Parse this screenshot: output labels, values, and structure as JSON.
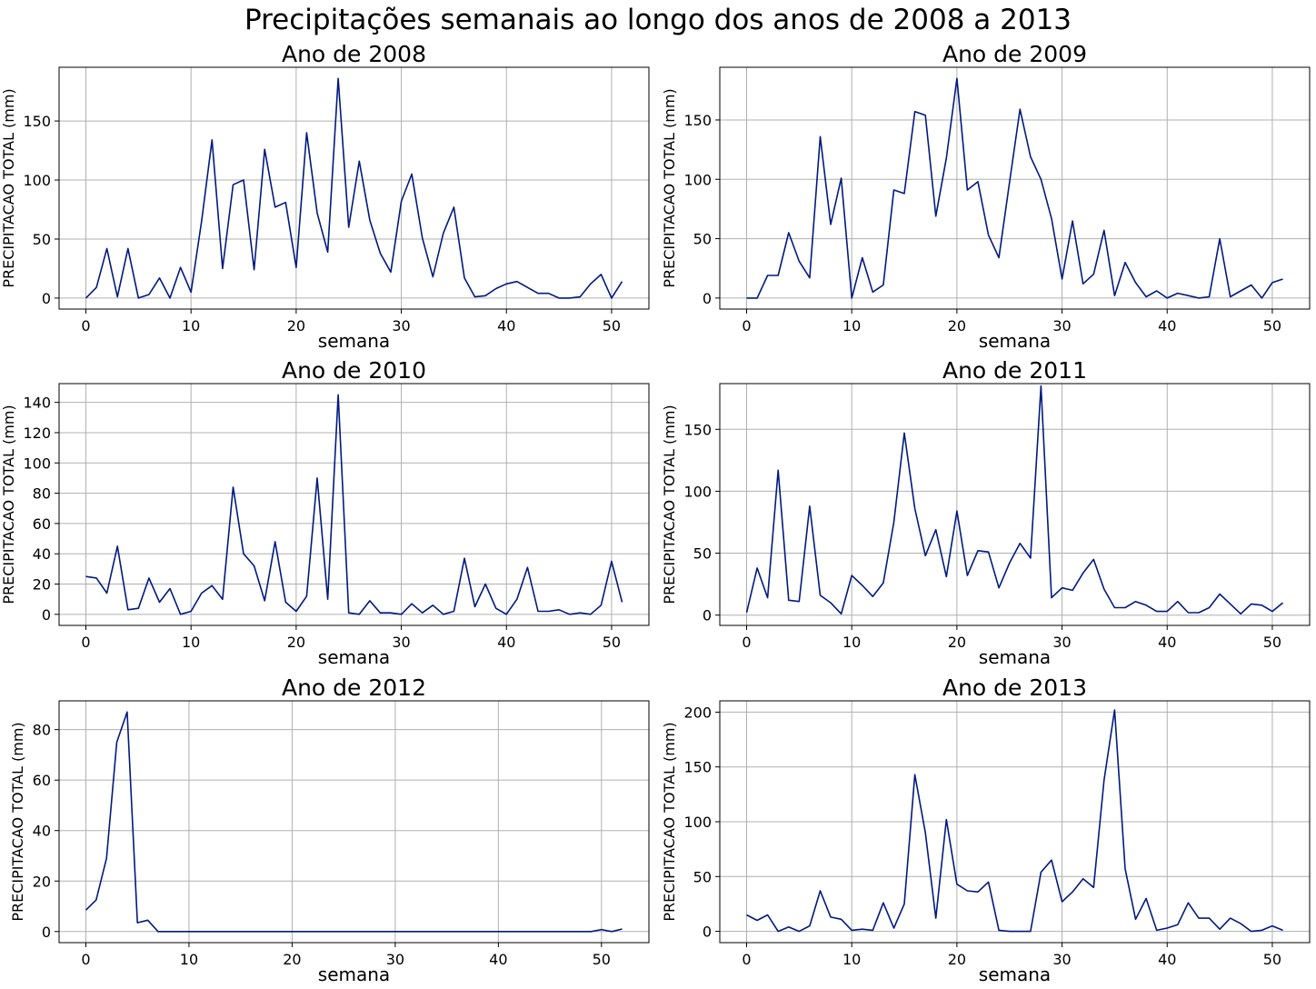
{
  "figure": {
    "title": "Precipitações semanais ao longo dos anos de 2008 a 2013",
    "line_color": "#001a80"
  },
  "chart_data": [
    {
      "type": "line",
      "title": "Ano de 2008",
      "xlabel": "semana",
      "ylabel": "PRECIPITACAO TOTAL (mm)",
      "xlim": [
        -2.55,
        53.55
      ],
      "ylim": [
        -9.3,
        195.5
      ],
      "xticks": [
        0,
        10,
        20,
        30,
        40,
        50
      ],
      "yticks": [
        0,
        50,
        100,
        150
      ],
      "grid": true,
      "x": [
        0,
        1,
        2,
        3,
        4,
        5,
        6,
        7,
        8,
        9,
        10,
        11,
        12,
        13,
        14,
        15,
        16,
        17,
        18,
        19,
        20,
        21,
        22,
        23,
        24,
        25,
        26,
        27,
        28,
        29,
        30,
        31,
        32,
        33,
        34,
        35,
        36,
        37,
        38,
        39,
        40,
        41,
        42,
        43,
        44,
        45,
        46,
        47,
        48,
        49,
        50,
        51
      ],
      "series": [
        {
          "values": [
            0,
            9,
            42,
            1,
            42,
            0,
            3,
            17,
            0,
            26,
            5,
            65,
            134,
            25,
            96,
            100,
            24,
            126,
            77,
            81,
            26,
            140,
            72,
            39,
            186,
            60,
            116,
            66,
            38,
            22,
            82,
            105,
            51,
            18,
            55,
            77,
            17,
            1,
            2,
            8,
            12,
            14,
            9,
            4,
            4,
            0,
            0,
            1,
            12,
            20,
            0,
            14
          ]
        }
      ]
    },
    {
      "type": "line",
      "title": "Ano de 2009",
      "xlabel": "semana",
      "ylabel": "PRECIPITACAO TOTAL (mm)",
      "xlim": [
        -2.55,
        53.55
      ],
      "ylim": [
        -9.3,
        194.4
      ],
      "xticks": [
        0,
        10,
        20,
        30,
        40,
        50
      ],
      "yticks": [
        0,
        50,
        100,
        150
      ],
      "grid": true,
      "x": [
        0,
        1,
        2,
        3,
        4,
        5,
        6,
        7,
        8,
        9,
        10,
        11,
        12,
        13,
        14,
        15,
        16,
        17,
        18,
        19,
        20,
        21,
        22,
        23,
        24,
        25,
        26,
        27,
        28,
        29,
        30,
        31,
        32,
        33,
        34,
        35,
        36,
        37,
        38,
        39,
        40,
        41,
        42,
        43,
        44,
        45,
        46,
        47,
        48,
        49,
        50,
        51
      ],
      "series": [
        {
          "values": [
            0,
            0,
            19,
            19,
            55,
            31,
            17,
            136,
            62,
            101,
            0,
            34,
            5,
            11,
            91,
            88,
            157,
            154,
            69,
            118,
            185,
            91,
            98,
            53,
            34,
            97,
            159,
            119,
            100,
            67,
            16,
            65,
            12,
            20,
            57,
            2,
            30,
            13,
            1,
            6,
            0,
            4,
            2,
            0,
            1,
            50,
            1,
            6,
            11,
            0,
            13,
            16
          ]
        }
      ]
    },
    {
      "type": "line",
      "title": "Ano de 2010",
      "xlabel": "semana",
      "ylabel": "PRECIPITACAO TOTAL (mm)",
      "xlim": [
        -2.55,
        53.55
      ],
      "ylim": [
        -7.3,
        152.4
      ],
      "xticks": [
        0,
        10,
        20,
        30,
        40,
        50
      ],
      "yticks": [
        0,
        20,
        40,
        60,
        80,
        100,
        120,
        140
      ],
      "grid": true,
      "x": [
        0,
        1,
        2,
        3,
        4,
        5,
        6,
        7,
        8,
        9,
        10,
        11,
        12,
        13,
        14,
        15,
        16,
        17,
        18,
        19,
        20,
        21,
        22,
        23,
        24,
        25,
        26,
        27,
        28,
        29,
        30,
        31,
        32,
        33,
        34,
        35,
        36,
        37,
        38,
        39,
        40,
        41,
        42,
        43,
        44,
        45,
        46,
        47,
        48,
        49,
        50,
        51
      ],
      "series": [
        {
          "values": [
            25,
            24,
            14,
            45,
            3,
            4,
            24,
            8,
            17,
            0,
            2,
            14,
            19,
            10,
            84,
            40,
            32,
            9,
            48,
            8,
            2,
            12,
            90,
            10,
            145,
            1,
            0,
            9,
            1,
            1,
            0,
            7,
            1,
            6,
            0,
            2,
            37,
            5,
            20,
            4,
            0,
            10,
            31,
            2,
            2,
            3,
            0,
            1,
            0,
            6,
            35,
            8
          ]
        }
      ]
    },
    {
      "type": "line",
      "title": "Ano de 2011",
      "xlabel": "semana",
      "ylabel": "PRECIPITACAO TOTAL (mm)",
      "xlim": [
        -2.55,
        53.55
      ],
      "ylim": [
        -8.3,
        186.9
      ],
      "xticks": [
        0,
        10,
        20,
        30,
        40,
        50
      ],
      "yticks": [
        0,
        50,
        100,
        150
      ],
      "grid": true,
      "x": [
        0,
        1,
        2,
        3,
        4,
        5,
        6,
        7,
        8,
        9,
        10,
        11,
        12,
        13,
        14,
        15,
        16,
        17,
        18,
        19,
        20,
        21,
        22,
        23,
        24,
        25,
        26,
        27,
        28,
        29,
        30,
        31,
        32,
        33,
        34,
        35,
        36,
        37,
        38,
        39,
        40,
        41,
        42,
        43,
        44,
        45,
        46,
        47,
        48,
        49,
        50,
        51
      ],
      "series": [
        {
          "values": [
            2,
            38,
            14,
            117,
            12,
            11,
            88,
            16,
            10,
            1,
            32,
            24,
            15,
            26,
            75,
            147,
            86,
            48,
            69,
            31,
            84,
            32,
            52,
            51,
            22,
            42,
            58,
            46,
            185,
            14,
            22,
            20,
            34,
            45,
            21,
            6,
            6,
            11,
            8,
            3,
            3,
            11,
            2,
            2,
            6,
            17,
            9,
            1,
            9,
            8,
            3,
            10
          ]
        }
      ]
    },
    {
      "type": "line",
      "title": "Ano de 2012",
      "xlabel": "semana",
      "ylabel": "PRECIPITACAO TOTAL (mm)",
      "xlim": [
        -2.6,
        54.6
      ],
      "ylim": [
        -4.4,
        91.4
      ],
      "xticks": [
        0,
        10,
        20,
        30,
        40,
        50
      ],
      "yticks": [
        0,
        20,
        40,
        60,
        80
      ],
      "grid": true,
      "x": [
        0,
        1,
        2,
        3,
        4,
        5,
        6,
        7,
        8,
        9,
        10,
        11,
        12,
        13,
        14,
        15,
        16,
        17,
        18,
        19,
        20,
        21,
        22,
        23,
        24,
        25,
        26,
        27,
        28,
        29,
        30,
        31,
        32,
        33,
        34,
        35,
        36,
        37,
        38,
        39,
        40,
        41,
        42,
        43,
        44,
        45,
        46,
        47,
        48,
        49,
        50,
        51,
        52
      ],
      "series": [
        {
          "values": [
            8.5,
            12.5,
            29,
            75,
            87,
            3.5,
            4.5,
            0,
            0,
            0,
            0,
            0,
            0,
            0,
            0,
            0,
            0,
            0,
            0,
            0,
            0,
            0,
            0,
            0,
            0,
            0,
            0,
            0,
            0,
            0,
            0,
            0,
            0,
            0,
            0,
            0,
            0,
            0,
            0,
            0,
            0,
            0,
            0,
            0,
            0,
            0,
            0,
            0,
            0,
            0,
            0.8,
            0,
            1
          ]
        }
      ]
    },
    {
      "type": "line",
      "title": "Ano de 2013",
      "xlabel": "semana",
      "ylabel": "PRECIPITACAO TOTAL (mm)",
      "xlim": [
        -2.55,
        53.55
      ],
      "ylim": [
        -10.3,
        210.3
      ],
      "xticks": [
        0,
        10,
        20,
        30,
        40,
        50
      ],
      "yticks": [
        0,
        50,
        100,
        150,
        200
      ],
      "grid": true,
      "x": [
        0,
        1,
        2,
        3,
        4,
        5,
        6,
        7,
        8,
        9,
        10,
        11,
        12,
        13,
        14,
        15,
        16,
        17,
        18,
        19,
        20,
        21,
        22,
        23,
        24,
        25,
        26,
        27,
        28,
        29,
        30,
        31,
        32,
        33,
        34,
        35,
        36,
        37,
        38,
        39,
        40,
        41,
        42,
        43,
        44,
        45,
        46,
        47,
        48,
        49,
        50,
        51
      ],
      "series": [
        {
          "values": [
            15,
            10,
            15,
            0,
            4,
            0,
            5,
            37,
            13,
            11,
            1,
            2,
            1,
            26,
            3,
            25,
            143,
            90,
            12,
            102,
            43,
            37,
            36,
            45,
            1,
            0,
            0,
            0,
            54,
            65,
            27,
            36,
            48,
            40,
            138,
            202,
            57,
            11,
            30,
            1,
            3,
            6,
            26,
            12,
            12,
            2,
            12,
            7,
            0,
            1,
            5,
            1
          ]
        }
      ]
    }
  ]
}
